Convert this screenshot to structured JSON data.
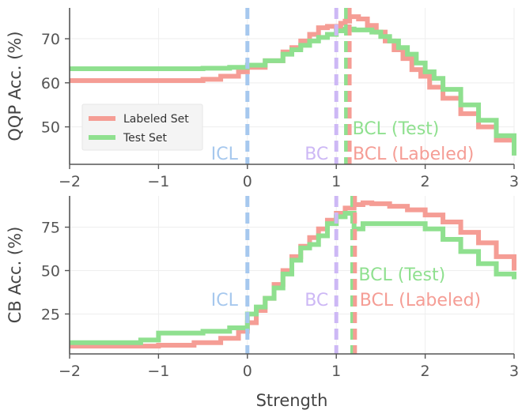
{
  "chart_data": [
    {
      "type": "line",
      "ylabel": "QQP Acc. (%)",
      "xlabel": "",
      "xlim": [
        -2,
        3
      ],
      "ylim": [
        41.5,
        77
      ],
      "xticks": [
        -2,
        -1,
        0,
        1,
        2,
        3
      ],
      "xtick_labels": [
        "−2",
        "−1",
        "0",
        "1",
        "2",
        "3"
      ],
      "yticks": [
        50,
        60,
        70
      ],
      "ytick_labels": [
        "50",
        "60",
        "70"
      ],
      "grid": true,
      "legend": {
        "placement": "center-left",
        "entries": [
          "Labeled Set",
          "Test Set"
        ]
      },
      "series": [
        {
          "name": "Labeled Set",
          "color": "#f59d95",
          "x": [
            -2,
            -1.5,
            -1,
            -0.5,
            -0.3,
            -0.1,
            0,
            0.2,
            0.4,
            0.5,
            0.6,
            0.7,
            0.8,
            0.9,
            1.0,
            1.05,
            1.1,
            1.15,
            1.25,
            1.35,
            1.45,
            1.55,
            1.65,
            1.75,
            1.85,
            1.95,
            2.05,
            2.2,
            2.4,
            2.6,
            2.8,
            3
          ],
          "values": [
            60.5,
            60.5,
            60.5,
            60.8,
            61.5,
            62.5,
            63.5,
            65,
            67,
            68,
            69.5,
            71,
            72.5,
            72.8,
            72.5,
            73.5,
            74,
            75,
            74.5,
            73,
            71.5,
            69.5,
            67.5,
            65.5,
            63,
            61.5,
            59,
            56.5,
            53,
            50,
            47,
            45
          ]
        },
        {
          "name": "Test Set",
          "color": "#8fe08f",
          "x": [
            -2,
            -1.5,
            -1,
            -0.5,
            -0.2,
            0,
            0.2,
            0.4,
            0.5,
            0.6,
            0.7,
            0.8,
            0.9,
            1.0,
            1.1,
            1.2,
            1.3,
            1.4,
            1.5,
            1.6,
            1.7,
            1.8,
            1.9,
            2.0,
            2.1,
            2.2,
            2.4,
            2.6,
            2.8,
            3
          ],
          "values": [
            63.2,
            63.2,
            63.2,
            63.3,
            63.5,
            64,
            65,
            66.5,
            67.5,
            68.5,
            69.5,
            70.3,
            71,
            71.8,
            72.2,
            72,
            72,
            71.5,
            70.5,
            69.5,
            68,
            66.5,
            64.5,
            62.5,
            61,
            58.5,
            55,
            51.5,
            48,
            43.5
          ]
        }
      ],
      "vlines": [
        {
          "label": "ICL",
          "x": 0,
          "color": "#a6c8ee"
        },
        {
          "label": "BC",
          "x": 1,
          "color": "#cdb8f5"
        },
        {
          "label": "BCL (Test)",
          "x": 1.11,
          "color": "#8fe08f"
        },
        {
          "label": "BCL (Labeled)",
          "x": 1.15,
          "color": "#f59d95"
        }
      ]
    },
    {
      "type": "line",
      "ylabel": "CB Acc. (%)",
      "xlabel": "Strength",
      "xlim": [
        -2,
        3
      ],
      "ylim": [
        2,
        93
      ],
      "xticks": [
        -2,
        -1,
        0,
        1,
        2,
        3
      ],
      "xtick_labels": [
        "−2",
        "−1",
        "0",
        "1",
        "2",
        "3"
      ],
      "yticks": [
        25,
        50,
        75
      ],
      "ytick_labels": [
        "25",
        "50",
        "75"
      ],
      "grid": true,
      "series": [
        {
          "name": "Labeled Set",
          "color": "#f59d95",
          "x": [
            -2,
            -1.5,
            -1,
            -0.6,
            -0.3,
            -0.1,
            0,
            0.1,
            0.2,
            0.3,
            0.4,
            0.5,
            0.6,
            0.7,
            0.8,
            0.9,
            1.0,
            1.1,
            1.2,
            1.3,
            1.4,
            1.6,
            1.8,
            2.0,
            2.2,
            2.4,
            2.6,
            2.8,
            3
          ],
          "values": [
            6.5,
            6.5,
            7,
            8.5,
            11,
            15,
            20,
            27,
            34,
            42,
            50,
            58,
            64,
            69,
            74,
            79,
            83,
            86,
            88,
            89,
            88.5,
            87,
            85,
            82,
            78,
            72,
            66,
            58,
            50
          ]
        },
        {
          "name": "Test Set",
          "color": "#8fe08f",
          "x": [
            -2,
            -1.5,
            -1.2,
            -1,
            -0.5,
            -0.2,
            0,
            0.1,
            0.2,
            0.3,
            0.4,
            0.5,
            0.6,
            0.7,
            0.8,
            0.9,
            1.0,
            1.1,
            1.2,
            1.3,
            1.6,
            2.0,
            2.2,
            2.4,
            2.6,
            2.8,
            3
          ],
          "values": [
            8.5,
            8.5,
            10,
            14,
            15,
            17,
            25,
            29,
            34,
            40,
            48,
            56,
            63,
            65,
            70,
            77,
            81,
            83,
            74,
            77,
            77,
            74,
            68,
            61,
            54,
            48,
            45
          ]
        }
      ],
      "vlines": [
        {
          "label": "ICL",
          "x": 0,
          "color": "#a6c8ee"
        },
        {
          "label": "BC",
          "x": 1,
          "color": "#cdb8f5"
        },
        {
          "label": "BCL (Test)",
          "x": 1.18,
          "color": "#8fe08f"
        },
        {
          "label": "BCL (Labeled)",
          "x": 1.21,
          "color": "#f59d95"
        }
      ]
    }
  ]
}
